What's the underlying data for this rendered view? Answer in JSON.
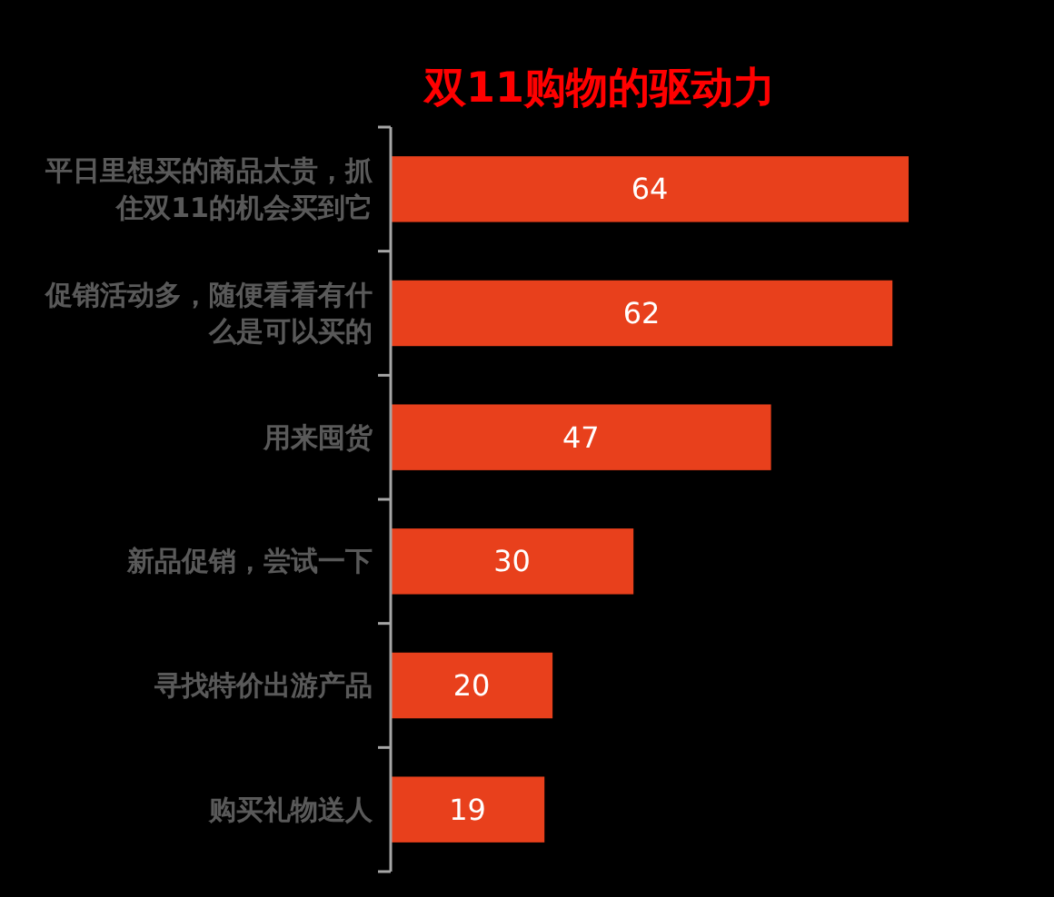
{
  "chart_data": {
    "type": "bar",
    "orientation": "horizontal",
    "title": "双11购物的驱动力",
    "categories": [
      "平日里想买的商品太贵，抓住双11的机会买到它",
      "促销活动多，随便看看有什么是可以买的",
      "用来囤货",
      "新品促销，尝试一下",
      "寻找特价出游产品",
      "购买礼物送人"
    ],
    "values": [
      64,
      62,
      47,
      30,
      20,
      19
    ],
    "color": "#e8401c",
    "data_labels": true
  }
}
